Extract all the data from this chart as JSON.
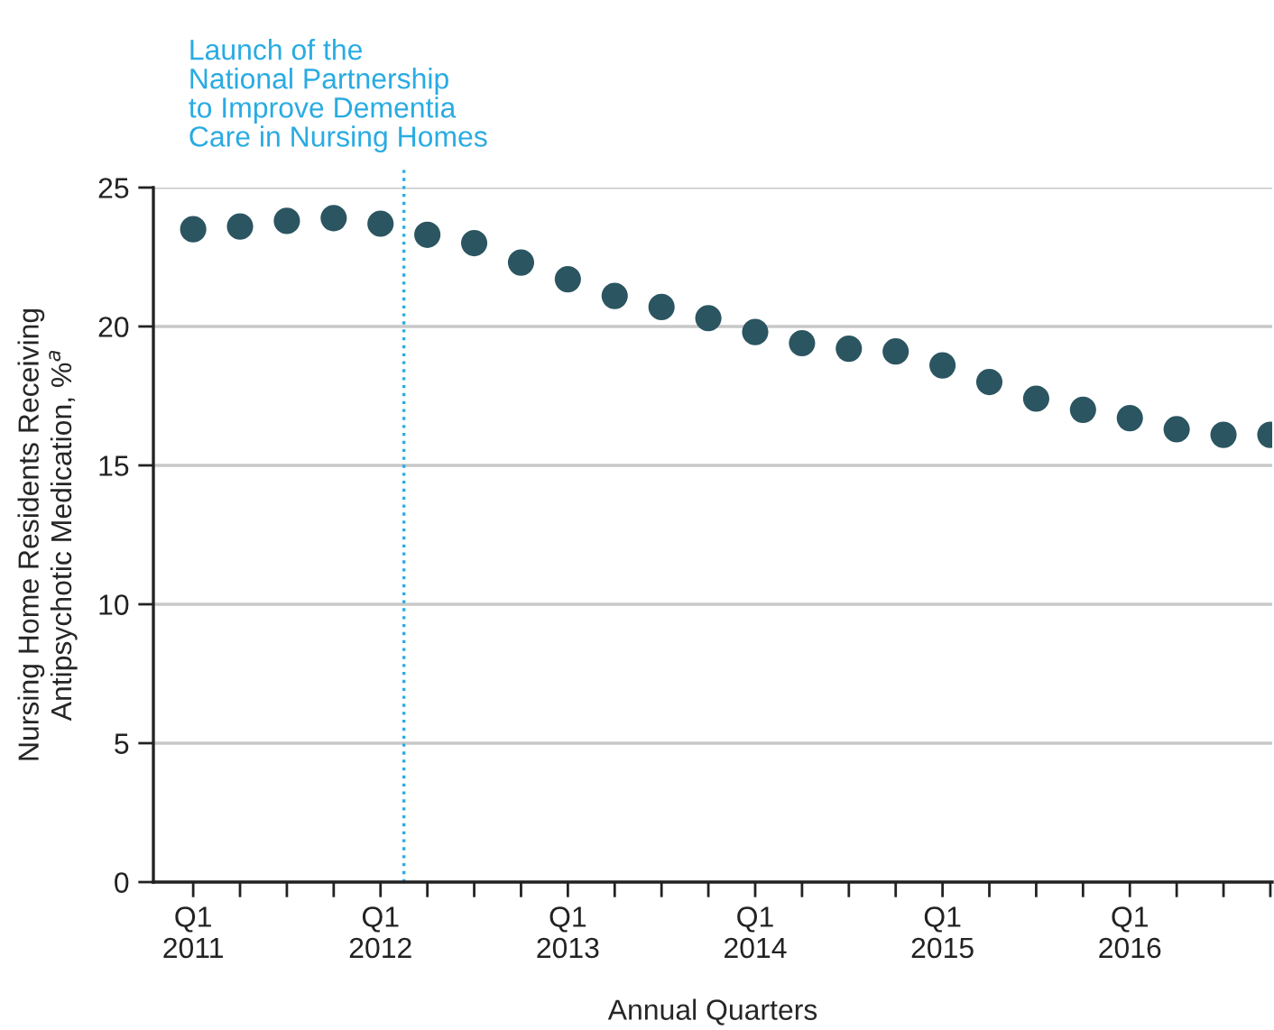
{
  "chart_data": {
    "type": "scatter",
    "xlabel": "Annual Quarters",
    "ylabel": "Nursing Home Residents Receiving\nAntipsychotic Medication, %$^{a}$",
    "categories": [
      "Q1\n2011",
      null,
      null,
      null,
      "Q1\n2012",
      null,
      null,
      null,
      "Q1\n2013",
      null,
      null,
      null,
      "Q1\n2014",
      null,
      null,
      null,
      "Q1\n2015",
      null,
      null,
      null,
      "Q1\n2016",
      null,
      null,
      null
    ],
    "series": [
      {
        "color": "#2b5561",
        "values": [
          23.5,
          23.6,
          23.8,
          23.9,
          23.7,
          23.3,
          23.0,
          22.3,
          21.7,
          21.1,
          20.7,
          20.3,
          19.8,
          19.4,
          19.2,
          19.1,
          18.6,
          18.0,
          17.4,
          17.0,
          16.7,
          16.3,
          16.1,
          16.1
        ]
      }
    ],
    "marker": "circle",
    "ylim": [
      0,
      25
    ],
    "yticks": [
      0,
      5,
      10,
      15,
      20,
      25
    ],
    "grid": "y",
    "ref_lines": [
      {
        "axis": "x",
        "value": "Q1\n2012",
        "label": "Launch of the\nNational Partnership\nto Improve Dementia\nCare in Nursing Homes",
        "color": "#29abe2",
        "line_style": "dotted"
      }
    ]
  }
}
